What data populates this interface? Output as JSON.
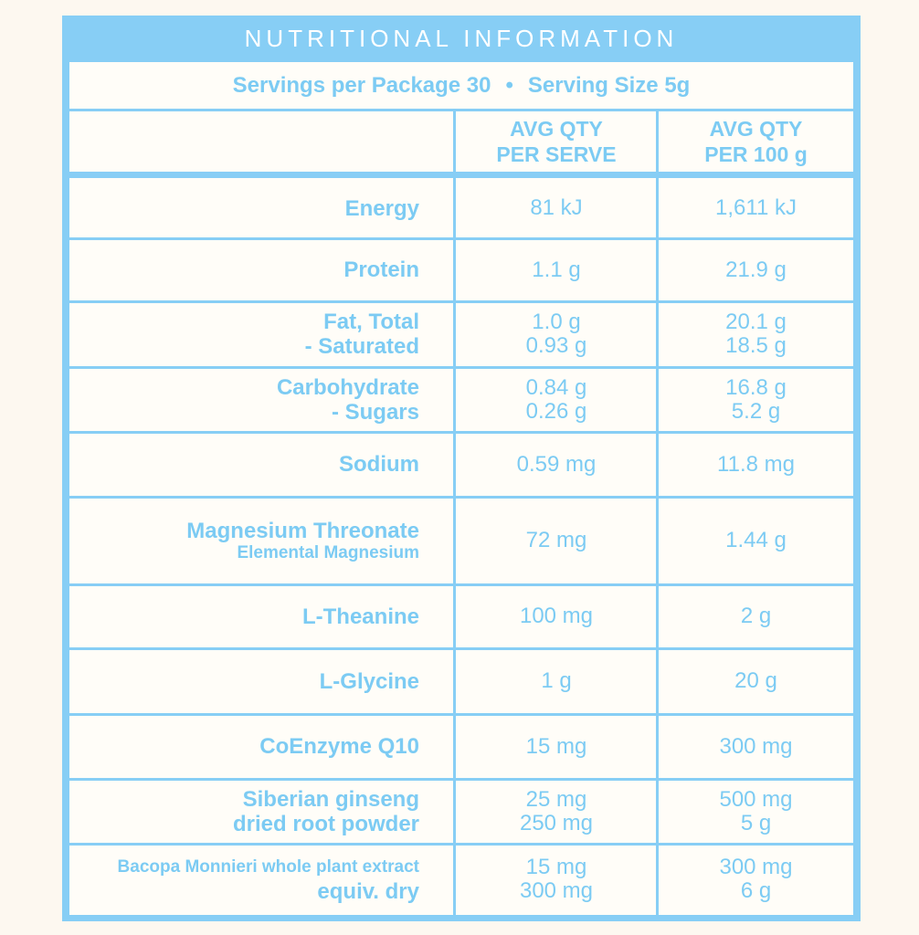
{
  "title": "NUTRITIONAL INFORMATION",
  "servings": {
    "per_package": "Servings per Package 30",
    "separator": "•",
    "size": "Serving Size 5g"
  },
  "columns": {
    "serve_line1": "AVG QTY",
    "serve_line2": "PER SERVE",
    "per100_line1": "AVG QTY",
    "per100_line2": "PER 100 g"
  },
  "rows": [
    {
      "label": [
        "Energy"
      ],
      "serve": [
        "81 kJ"
      ],
      "per100": [
        "1,611 kJ"
      ]
    },
    {
      "label": [
        "Protein"
      ],
      "serve": [
        "1.1 g"
      ],
      "per100": [
        "21.9 g"
      ]
    },
    {
      "label": [
        "Fat, Total",
        "- Saturated"
      ],
      "serve": [
        "1.0 g",
        "0.93 g"
      ],
      "per100": [
        "20.1 g",
        "18.5 g"
      ]
    },
    {
      "label": [
        "Carbohydrate",
        "- Sugars"
      ],
      "serve": [
        "0.84 g",
        "0.26 g"
      ],
      "per100": [
        "16.8 g",
        "5.2 g"
      ]
    },
    {
      "label": [
        "Sodium"
      ],
      "serve": [
        "0.59 mg"
      ],
      "per100": [
        "11.8 mg"
      ]
    },
    {
      "label": [
        "Magnesium Threonate",
        "Elemental Magnesium"
      ],
      "serve": [
        "72 mg"
      ],
      "per100": [
        "1.44 g"
      ]
    },
    {
      "label": [
        "L-Theanine"
      ],
      "serve": [
        "100 mg"
      ],
      "per100": [
        "2 g"
      ]
    },
    {
      "label": [
        "L-Glycine"
      ],
      "serve": [
        "1 g"
      ],
      "per100": [
        "20 g"
      ]
    },
    {
      "label": [
        "CoEnzyme Q10"
      ],
      "serve": [
        "15 mg"
      ],
      "per100": [
        "300 mg"
      ]
    },
    {
      "label": [
        "Siberian ginseng",
        "dried root powder"
      ],
      "serve": [
        "25 mg",
        "250 mg"
      ],
      "per100": [
        "500 mg",
        "5 g"
      ]
    },
    {
      "label": [
        "Bacopa Monnieri whole plant extract",
        "equiv. dry"
      ],
      "serve": [
        "15 mg",
        "300 mg"
      ],
      "per100": [
        "300 mg",
        "6 g"
      ]
    }
  ],
  "colors": {
    "border": "#87cef5",
    "text": "#7ccbf3",
    "background": "#fdf8f0"
  }
}
